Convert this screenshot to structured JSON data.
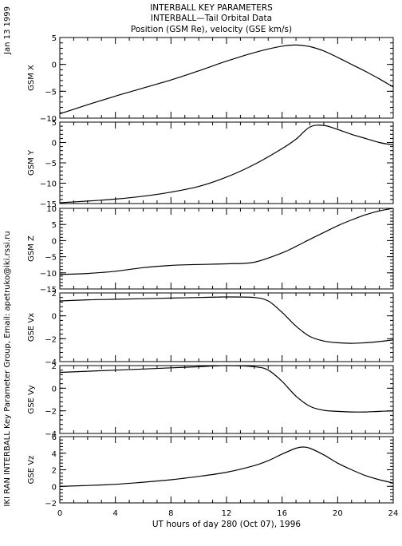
{
  "header": {
    "title_line1": "INTERBALL KEY PARAMETERS",
    "title_line2": "INTERBALL—Tail Orbital Data",
    "title_line3": "Position (GSM Re), velocity (GSE km/s)"
  },
  "side_text": {
    "date": "Jan 13 1999",
    "credit": "IKI RAN INTERBALL Key Parameter Group, Email: apetruko@iki.rssi.ru"
  },
  "chart_data": [
    {
      "type": "line",
      "ylabel": "GSM X",
      "ylim": [
        -10,
        5
      ],
      "yticks": [
        -10,
        -5,
        0,
        5
      ],
      "x": [
        0,
        2,
        4,
        6,
        8,
        10,
        12,
        14,
        16,
        17,
        18,
        19,
        20,
        21,
        22,
        23,
        24
      ],
      "values": [
        -9.2,
        -7.5,
        -5.9,
        -4.4,
        -2.9,
        -1.2,
        0.6,
        2.2,
        3.4,
        3.6,
        3.3,
        2.5,
        1.3,
        0.0,
        -1.3,
        -2.7,
        -4.2
      ]
    },
    {
      "type": "line",
      "ylabel": "GSM Y",
      "ylim": [
        -15,
        5
      ],
      "yticks": [
        -15,
        -10,
        -5,
        0,
        5
      ],
      "x": [
        0,
        2,
        4,
        6,
        8,
        10,
        12,
        14,
        16,
        17,
        18,
        19,
        20,
        21,
        22,
        23,
        24
      ],
      "values": [
        -14.8,
        -14.4,
        -13.9,
        -13.2,
        -12.2,
        -10.8,
        -8.5,
        -5.4,
        -1.5,
        0.8,
        3.8,
        4.2,
        3.2,
        2.0,
        1.0,
        0.0,
        -0.6
      ]
    },
    {
      "type": "line",
      "ylabel": "GSM Z",
      "ylim": [
        -15,
        10
      ],
      "yticks": [
        -15,
        -10,
        -5,
        0,
        5,
        10
      ],
      "x": [
        0,
        2,
        4,
        6,
        8,
        10,
        12,
        14,
        16,
        17,
        18,
        19,
        20,
        21,
        22,
        23,
        24
      ],
      "values": [
        -10.5,
        -10.2,
        -9.5,
        -8.4,
        -7.7,
        -7.4,
        -7.2,
        -6.7,
        -3.8,
        -1.8,
        0.4,
        2.5,
        4.6,
        6.4,
        8.0,
        9.2,
        10.0
      ]
    },
    {
      "type": "line",
      "ylabel": "GSE Vx",
      "ylim": [
        -4,
        2
      ],
      "yticks": [
        -4,
        -2,
        0,
        2
      ],
      "x": [
        0,
        2,
        4,
        6,
        8,
        10,
        12,
        14,
        15,
        16,
        17,
        18,
        19,
        20,
        21,
        22,
        23,
        24
      ],
      "values": [
        1.3,
        1.4,
        1.45,
        1.5,
        1.55,
        1.6,
        1.65,
        1.6,
        1.3,
        0.3,
        -0.9,
        -1.8,
        -2.2,
        -2.35,
        -2.4,
        -2.35,
        -2.25,
        -2.1
      ]
    },
    {
      "type": "line",
      "ylabel": "GSE Vy",
      "ylim": [
        -4,
        2
      ],
      "yticks": [
        -4,
        -2,
        0,
        2
      ],
      "x": [
        0,
        2,
        4,
        6,
        8,
        10,
        12,
        14,
        15,
        16,
        17,
        18,
        19,
        20,
        21,
        22,
        23,
        24
      ],
      "values": [
        1.4,
        1.5,
        1.6,
        1.7,
        1.8,
        1.9,
        2.0,
        1.9,
        1.6,
        0.6,
        -0.7,
        -1.6,
        -1.95,
        -2.05,
        -2.1,
        -2.1,
        -2.05,
        -2.0
      ]
    },
    {
      "type": "line",
      "ylabel": "GSE Vz",
      "ylim": [
        -2,
        6
      ],
      "yticks": [
        -2,
        0,
        2,
        4,
        6
      ],
      "x": [
        0,
        2,
        4,
        6,
        8,
        10,
        12,
        14,
        15,
        16,
        17,
        17.5,
        18,
        19,
        20,
        21,
        22,
        23,
        24
      ],
      "values": [
        0.0,
        0.1,
        0.25,
        0.5,
        0.8,
        1.2,
        1.7,
        2.5,
        3.1,
        3.9,
        4.6,
        4.75,
        4.6,
        3.8,
        2.8,
        2.0,
        1.3,
        0.8,
        0.4
      ]
    }
  ],
  "x_axis": {
    "label": "UT hours of day 280 (Oct 07), 1996",
    "xlim": [
      0,
      24
    ],
    "ticks": [
      0,
      4,
      8,
      12,
      16,
      20,
      24
    ]
  }
}
